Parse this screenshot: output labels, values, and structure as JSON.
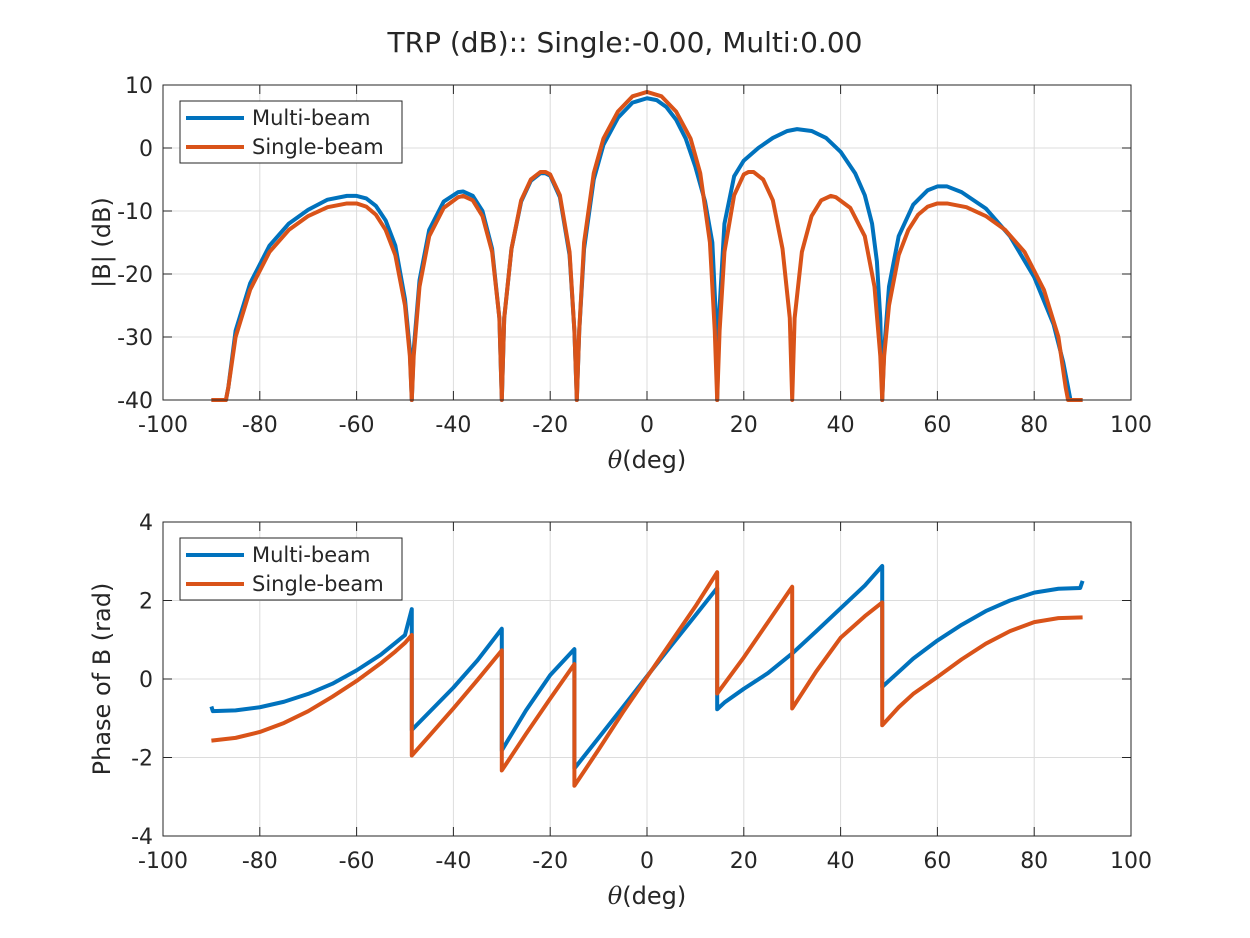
{
  "figure": {
    "title": "TRP (dB):: Single:-0.00, Multi:0.00"
  },
  "colors": {
    "multi": "#0072BD",
    "single": "#D95319"
  },
  "chart_data": [
    {
      "type": "line",
      "xlabel_symbol": "θ",
      "xlabel_unit": "(deg)",
      "ylabel": "|B| (dB)",
      "xlim": [
        -100,
        100
      ],
      "ylim": [
        -40,
        10
      ],
      "xticks": [
        -100,
        -80,
        -60,
        -40,
        -20,
        0,
        20,
        40,
        60,
        80,
        100
      ],
      "yticks": [
        -40,
        -30,
        -20,
        -10,
        0,
        10
      ],
      "grid": true,
      "legend_position": "top-left",
      "series": [
        {
          "name": "Multi-beam",
          "points": [
            [
              -90,
              -40
            ],
            [
              -87,
              -40
            ],
            [
              -86.5,
              -38
            ],
            [
              -85,
              -29
            ],
            [
              -82,
              -21.5
            ],
            [
              -78,
              -15.5
            ],
            [
              -74,
              -12
            ],
            [
              -70,
              -9.8
            ],
            [
              -66,
              -8.2
            ],
            [
              -62,
              -7.6
            ],
            [
              -60,
              -7.6
            ],
            [
              -58,
              -8
            ],
            [
              -56,
              -9.2
            ],
            [
              -54,
              -11.5
            ],
            [
              -52,
              -15.5
            ],
            [
              -50,
              -24
            ],
            [
              -49,
              -32
            ],
            [
              -48.6,
              -40
            ],
            [
              -48.2,
              -32
            ],
            [
              -47,
              -21
            ],
            [
              -45,
              -13
            ],
            [
              -42,
              -8.5
            ],
            [
              -39,
              -7
            ],
            [
              -38,
              -6.9
            ],
            [
              -36,
              -7.6
            ],
            [
              -34,
              -10
            ],
            [
              -32,
              -16
            ],
            [
              -30.5,
              -27
            ],
            [
              -30,
              -40
            ],
            [
              -29.5,
              -27
            ],
            [
              -28,
              -16
            ],
            [
              -26,
              -8.5
            ],
            [
              -24,
              -5.2
            ],
            [
              -22,
              -4
            ],
            [
              -21,
              -4
            ],
            [
              -20,
              -4.4
            ],
            [
              -18,
              -7.8
            ],
            [
              -16,
              -17
            ],
            [
              -15,
              -29
            ],
            [
              -14.5,
              -40
            ],
            [
              -14,
              -29
            ],
            [
              -13,
              -16
            ],
            [
              -11,
              -5
            ],
            [
              -9,
              0.5
            ],
            [
              -6,
              4.8
            ],
            [
              -3,
              7.2
            ],
            [
              0,
              7.9
            ],
            [
              2,
              7.6
            ],
            [
              4,
              6.5
            ],
            [
              6,
              4.5
            ],
            [
              8,
              1.5
            ],
            [
              10,
              -3
            ],
            [
              12,
              -8.5
            ],
            [
              13.5,
              -15
            ],
            [
              14.3,
              -28
            ],
            [
              14.5,
              -40
            ],
            [
              14.8,
              -28
            ],
            [
              16,
              -12
            ],
            [
              18,
              -4.5
            ],
            [
              20,
              -2
            ],
            [
              23,
              0
            ],
            [
              26,
              1.6
            ],
            [
              29,
              2.7
            ],
            [
              31,
              3
            ],
            [
              34,
              2.7
            ],
            [
              37,
              1.6
            ],
            [
              40,
              -0.6
            ],
            [
              43,
              -4
            ],
            [
              45,
              -7.5
            ],
            [
              46.5,
              -12
            ],
            [
              47.5,
              -18
            ],
            [
              48.2,
              -27
            ],
            [
              48.6,
              -40
            ],
            [
              49,
              -32
            ],
            [
              50,
              -22
            ],
            [
              52,
              -14
            ],
            [
              55,
              -9
            ],
            [
              58,
              -6.7
            ],
            [
              60,
              -6.1
            ],
            [
              62,
              -6.1
            ],
            [
              65,
              -7
            ],
            [
              70,
              -9.6
            ],
            [
              75,
              -14
            ],
            [
              80,
              -20.5
            ],
            [
              84,
              -28
            ],
            [
              86,
              -34
            ],
            [
              87.5,
              -40
            ],
            [
              90,
              -40
            ]
          ]
        },
        {
          "name": "Single-beam",
          "points": [
            [
              -90,
              -40
            ],
            [
              -87,
              -40
            ],
            [
              -86.5,
              -38
            ],
            [
              -85,
              -30
            ],
            [
              -82,
              -22.5
            ],
            [
              -78,
              -16.5
            ],
            [
              -74,
              -13
            ],
            [
              -70,
              -10.8
            ],
            [
              -66,
              -9.4
            ],
            [
              -62,
              -8.8
            ],
            [
              -60,
              -8.8
            ],
            [
              -58,
              -9.3
            ],
            [
              -56,
              -10.6
            ],
            [
              -54,
              -13
            ],
            [
              -52,
              -17
            ],
            [
              -50,
              -25
            ],
            [
              -49,
              -33
            ],
            [
              -48.6,
              -40
            ],
            [
              -48.2,
              -33
            ],
            [
              -47,
              -22
            ],
            [
              -45,
              -14
            ],
            [
              -42,
              -9.5
            ],
            [
              -39,
              -7.8
            ],
            [
              -38,
              -7.6
            ],
            [
              -36,
              -8.3
            ],
            [
              -34,
              -10.8
            ],
            [
              -32,
              -16.5
            ],
            [
              -30.5,
              -27
            ],
            [
              -30,
              -40
            ],
            [
              -29.5,
              -27
            ],
            [
              -28,
              -16
            ],
            [
              -26,
              -8.3
            ],
            [
              -24,
              -5
            ],
            [
              -22,
              -3.8
            ],
            [
              -21,
              -3.8
            ],
            [
              -20,
              -4.2
            ],
            [
              -18,
              -7.5
            ],
            [
              -16,
              -16.5
            ],
            [
              -15,
              -29
            ],
            [
              -14.5,
              -40
            ],
            [
              -14,
              -29
            ],
            [
              -13,
              -15
            ],
            [
              -11,
              -4
            ],
            [
              -9,
              1.5
            ],
            [
              -6,
              5.8
            ],
            [
              -3,
              8.2
            ],
            [
              0,
              8.9
            ],
            [
              3,
              8.2
            ],
            [
              6,
              5.8
            ],
            [
              9,
              1.5
            ],
            [
              11,
              -4
            ],
            [
              13,
              -15
            ],
            [
              14,
              -29
            ],
            [
              14.5,
              -40
            ],
            [
              15,
              -29
            ],
            [
              16,
              -16.5
            ],
            [
              18,
              -7.5
            ],
            [
              20,
              -4.2
            ],
            [
              21,
              -3.8
            ],
            [
              22,
              -3.8
            ],
            [
              24,
              -5
            ],
            [
              26,
              -8.3
            ],
            [
              28,
              -16
            ],
            [
              29.5,
              -27
            ],
            [
              30,
              -40
            ],
            [
              30.5,
              -27
            ],
            [
              32,
              -16.5
            ],
            [
              34,
              -10.8
            ],
            [
              36,
              -8.3
            ],
            [
              38,
              -7.6
            ],
            [
              39,
              -7.8
            ],
            [
              42,
              -9.5
            ],
            [
              45,
              -14
            ],
            [
              47,
              -22
            ],
            [
              48.2,
              -33
            ],
            [
              48.6,
              -40
            ],
            [
              49,
              -33
            ],
            [
              50,
              -25
            ],
            [
              52,
              -17
            ],
            [
              54,
              -13
            ],
            [
              56,
              -10.6
            ],
            [
              58,
              -9.3
            ],
            [
              60,
              -8.8
            ],
            [
              62,
              -8.8
            ],
            [
              66,
              -9.4
            ],
            [
              70,
              -10.8
            ],
            [
              74,
              -13
            ],
            [
              78,
              -16.5
            ],
            [
              82,
              -22.5
            ],
            [
              85,
              -30
            ],
            [
              86.5,
              -38
            ],
            [
              87,
              -40
            ],
            [
              90,
              -40
            ]
          ]
        }
      ]
    },
    {
      "type": "line",
      "xlabel_symbol": "θ",
      "xlabel_unit": "(deg)",
      "ylabel": "Phase of B (rad)",
      "xlim": [
        -100,
        100
      ],
      "ylim": [
        -4,
        4
      ],
      "xticks": [
        -100,
        -80,
        -60,
        -40,
        -20,
        0,
        20,
        40,
        60,
        80,
        100
      ],
      "yticks": [
        -4,
        -2,
        0,
        2,
        4
      ],
      "grid": true,
      "legend_position": "top-left",
      "series": [
        {
          "name": "Multi-beam",
          "points": [
            [
              -90,
              -0.7
            ],
            [
              -89.7,
              -0.82
            ],
            [
              -85,
              -0.8
            ],
            [
              -80,
              -0.72
            ],
            [
              -75,
              -0.58
            ],
            [
              -70,
              -0.38
            ],
            [
              -65,
              -0.12
            ],
            [
              -60,
              0.22
            ],
            [
              -55,
              0.62
            ],
            [
              -52,
              0.92
            ],
            [
              -50,
              1.12
            ],
            [
              -48.6,
              1.78
            ],
            [
              -48.6,
              -1.3
            ],
            [
              -40,
              -0.22
            ],
            [
              -35,
              0.48
            ],
            [
              -30,
              1.28
            ],
            [
              -30,
              -1.82
            ],
            [
              -25,
              -0.8
            ],
            [
              -20,
              0.1
            ],
            [
              -15,
              0.76
            ],
            [
              -15,
              -2.28
            ],
            [
              -10,
              -1.5
            ],
            [
              -5,
              -0.72
            ],
            [
              0,
              0.07
            ],
            [
              5,
              0.85
            ],
            [
              10,
              1.62
            ],
            [
              14.5,
              2.32
            ],
            [
              14.5,
              -0.77
            ],
            [
              16,
              -0.6
            ],
            [
              20,
              -0.25
            ],
            [
              25,
              0.15
            ],
            [
              30,
              0.65
            ],
            [
              35,
              1.22
            ],
            [
              40,
              1.8
            ],
            [
              45,
              2.38
            ],
            [
              48.6,
              2.88
            ],
            [
              48.6,
              -0.2
            ],
            [
              52,
              0.18
            ],
            [
              55,
              0.52
            ],
            [
              60,
              0.98
            ],
            [
              65,
              1.38
            ],
            [
              70,
              1.73
            ],
            [
              75,
              2.0
            ],
            [
              80,
              2.2
            ],
            [
              85,
              2.3
            ],
            [
              89.5,
              2.32
            ],
            [
              90,
              2.5
            ]
          ]
        },
        {
          "name": "Single-beam",
          "points": [
            [
              -90,
              -1.57
            ],
            [
              -85,
              -1.5
            ],
            [
              -80,
              -1.35
            ],
            [
              -75,
              -1.12
            ],
            [
              -70,
              -0.82
            ],
            [
              -65,
              -0.45
            ],
            [
              -60,
              -0.05
            ],
            [
              -55,
              0.4
            ],
            [
              -52,
              0.7
            ],
            [
              -50,
              0.92
            ],
            [
              -48.6,
              1.12
            ],
            [
              -48.6,
              -1.95
            ],
            [
              -45,
              -1.45
            ],
            [
              -40,
              -0.75
            ],
            [
              -35,
              -0.02
            ],
            [
              -30,
              0.73
            ],
            [
              -30,
              -2.33
            ],
            [
              -25,
              -1.4
            ],
            [
              -20,
              -0.5
            ],
            [
              -15,
              0.38
            ],
            [
              -15,
              -2.72
            ],
            [
              -10,
              -1.8
            ],
            [
              -5,
              -0.85
            ],
            [
              0,
              0.05
            ],
            [
              5,
              0.95
            ],
            [
              10,
              1.85
            ],
            [
              14.5,
              2.72
            ],
            [
              14.5,
              -0.37
            ],
            [
              20,
              0.55
            ],
            [
              25,
              1.45
            ],
            [
              30,
              2.35
            ],
            [
              30,
              -0.75
            ],
            [
              35,
              0.2
            ],
            [
              40,
              1.05
            ],
            [
              45,
              1.6
            ],
            [
              48.6,
              1.95
            ],
            [
              48.6,
              -1.18
            ],
            [
              52,
              -0.72
            ],
            [
              55,
              -0.38
            ],
            [
              60,
              0.05
            ],
            [
              65,
              0.5
            ],
            [
              70,
              0.9
            ],
            [
              75,
              1.22
            ],
            [
              80,
              1.45
            ],
            [
              85,
              1.55
            ],
            [
              90,
              1.57
            ]
          ]
        }
      ]
    }
  ]
}
